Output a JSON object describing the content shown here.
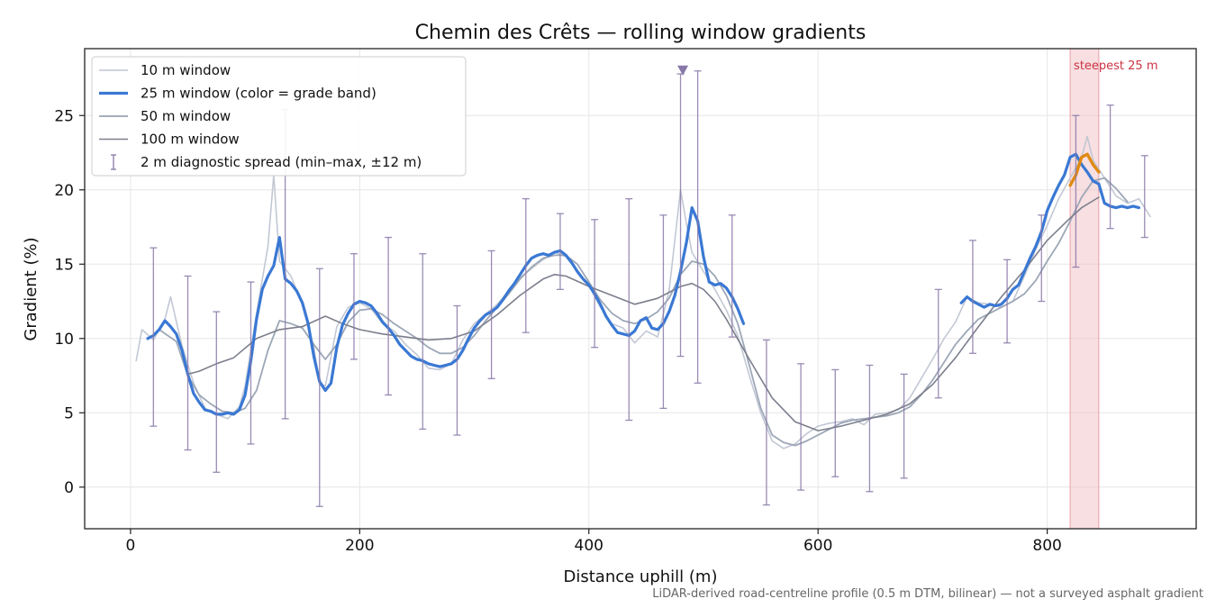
{
  "chart_data": {
    "type": "line",
    "title": "Chemin des Crêts — rolling window gradients",
    "xlabel": "Distance uphill (m)",
    "ylabel": "Gradient (%)",
    "xlim": [
      -40,
      930
    ],
    "ylim": [
      -2.8,
      29.5
    ],
    "xticks": [
      0,
      200,
      400,
      600,
      800
    ],
    "yticks": [
      0,
      5,
      10,
      15,
      20,
      25
    ],
    "grid": true,
    "legend_position": "top-left",
    "colors": {
      "w10": "#bfc5d2",
      "w25": "#3a78d4",
      "w25_steep": "#e08a12",
      "w50": "#98a2b3",
      "w100": "#7c7f8c",
      "errorbar": "#8878a8",
      "steep_band": "#f2c4c8",
      "steep_text": "#cc3344"
    },
    "series": [
      {
        "name": "10 m window",
        "key": "w10",
        "x": [
          5,
          10,
          20,
          30,
          35,
          45,
          55,
          65,
          75,
          85,
          95,
          100,
          110,
          120,
          125,
          130,
          140,
          150,
          160,
          165,
          170,
          180,
          190,
          200,
          210,
          220,
          230,
          240,
          250,
          260,
          270,
          280,
          290,
          300,
          320,
          340,
          360,
          370,
          380,
          400,
          410,
          420,
          430,
          440,
          450,
          460,
          470,
          480,
          485,
          490,
          500,
          510,
          520,
          530,
          540,
          550,
          560,
          570,
          580,
          590,
          600,
          610,
          620,
          630,
          640,
          650,
          660,
          670,
          680,
          690,
          700,
          710,
          720,
          730,
          740,
          750,
          760,
          770,
          780,
          790,
          800,
          810,
          820,
          830,
          835,
          840,
          850,
          860,
          870,
          880,
          890
        ],
        "y": [
          8.5,
          10.6,
          9.9,
          11.3,
          12.8,
          9.5,
          7.0,
          5.3,
          4.9,
          4.6,
          5.4,
          6.8,
          11.7,
          16.2,
          21.0,
          15.2,
          14.2,
          12.3,
          9.4,
          7.0,
          6.8,
          10.8,
          12.1,
          12.4,
          12.0,
          11.0,
          10.5,
          9.6,
          8.9,
          8.0,
          7.9,
          8.3,
          9.9,
          11.0,
          12.3,
          14.1,
          15.3,
          15.8,
          15.5,
          13.6,
          12.1,
          11.0,
          10.7,
          9.7,
          10.5,
          10.1,
          13.2,
          20.0,
          17.8,
          15.8,
          14.5,
          13.3,
          11.9,
          10.2,
          7.5,
          5.0,
          3.1,
          2.6,
          2.9,
          3.6,
          4.1,
          4.3,
          4.4,
          4.6,
          4.2,
          4.9,
          5.0,
          5.2,
          6.0,
          7.3,
          8.6,
          10.0,
          11.1,
          12.8,
          12.4,
          12.3,
          12.1,
          12.5,
          14.2,
          16.0,
          17.6,
          19.4,
          20.8,
          22.2,
          23.6,
          22.0,
          20.8,
          19.6,
          19.1,
          19.4,
          18.2
        ]
      },
      {
        "name": "25 m window (color = grade band)",
        "key": "w25",
        "x": [
          15,
          20,
          25,
          30,
          35,
          40,
          45,
          50,
          55,
          60,
          65,
          70,
          75,
          80,
          85,
          90,
          95,
          100,
          105,
          110,
          115,
          120,
          125,
          130,
          135,
          140,
          145,
          150,
          155,
          160,
          165,
          170,
          175,
          180,
          185,
          190,
          195,
          200,
          205,
          210,
          215,
          220,
          225,
          230,
          235,
          240,
          245,
          250,
          255,
          260,
          265,
          270,
          275,
          280,
          285,
          290,
          295,
          300,
          305,
          310,
          315,
          320,
          325,
          330,
          335,
          340,
          345,
          350,
          355,
          360,
          365,
          370,
          375,
          380,
          385,
          390,
          395,
          400,
          405,
          410,
          415,
          420,
          425,
          430,
          435,
          440,
          445,
          450,
          455,
          460,
          465,
          470,
          475,
          480,
          485,
          490,
          495,
          500,
          505,
          510,
          515,
          520,
          525,
          530,
          535,
          540,
          545,
          550,
          555,
          560,
          565,
          570,
          575,
          580,
          585,
          590,
          595,
          600,
          605,
          610,
          615,
          620,
          625,
          630,
          635,
          640,
          645,
          650,
          655,
          660,
          665,
          670,
          675,
          680,
          685,
          690,
          695,
          700,
          705,
          710,
          715,
          720,
          725,
          730,
          735,
          740,
          745,
          750,
          755,
          760,
          765,
          770,
          775,
          780,
          785,
          790,
          795,
          800,
          805,
          810,
          815,
          820,
          825,
          830,
          835,
          840,
          845,
          850,
          855,
          860,
          865,
          870,
          875,
          880
        ],
        "y": [
          10.0,
          10.2,
          10.6,
          11.2,
          10.8,
          10.3,
          9.2,
          7.6,
          6.3,
          5.7,
          5.2,
          5.1,
          4.9,
          4.9,
          5.0,
          4.9,
          5.2,
          6.2,
          8.5,
          11.3,
          13.3,
          14.2,
          14.9,
          16.8,
          14.0,
          13.7,
          13.2,
          12.4,
          11.0,
          8.8,
          7.1,
          6.5,
          7.0,
          9.4,
          10.9,
          11.7,
          12.3,
          12.5,
          12.4,
          12.2,
          11.7,
          11.1,
          10.7,
          10.2,
          9.6,
          9.2,
          8.8,
          8.6,
          8.5,
          8.3,
          8.2,
          8.1,
          8.2,
          8.3,
          8.6,
          9.2,
          10.0,
          10.7,
          11.2,
          11.6,
          11.8,
          12.1,
          12.6,
          13.2,
          13.7,
          14.3,
          14.9,
          15.4,
          15.6,
          15.7,
          15.6,
          15.8,
          15.9,
          15.6,
          15.1,
          14.5,
          14.0,
          13.6,
          13.0,
          12.3,
          11.5,
          10.9,
          10.4,
          10.3,
          10.2,
          10.5,
          11.2,
          11.4,
          10.7,
          10.6,
          11.0,
          11.8,
          12.9,
          14.5,
          16.4,
          18.8,
          17.9,
          15.5,
          13.8,
          13.6,
          13.7,
          13.4,
          12.8,
          12.0,
          11.0,
          null,
          null,
          null,
          null,
          null,
          null,
          null,
          null,
          null,
          null,
          null,
          null,
          null,
          null,
          null,
          null,
          null,
          null,
          null,
          null,
          null,
          null,
          null,
          null,
          null,
          null,
          null,
          null,
          null,
          null,
          null,
          null,
          null,
          null,
          null,
          null,
          null,
          12.4,
          12.8,
          12.5,
          12.3,
          12.1,
          12.3,
          12.2,
          12.3,
          12.7,
          13.3,
          13.6,
          14.5,
          15.4,
          16.2,
          17.2,
          18.6,
          19.5,
          20.3,
          21.0,
          22.2,
          22.4,
          21.7,
          21.2,
          20.6,
          20.4,
          19.1,
          18.9,
          18.8,
          18.9,
          18.8,
          18.9,
          18.8
        ]
      },
      {
        "name": "50 m window",
        "key": "w50",
        "x": [
          25,
          40,
          50,
          60,
          70,
          80,
          90,
          100,
          110,
          120,
          130,
          140,
          150,
          160,
          170,
          180,
          190,
          200,
          210,
          220,
          230,
          240,
          250,
          260,
          270,
          280,
          290,
          300,
          310,
          320,
          330,
          340,
          350,
          360,
          370,
          380,
          390,
          400,
          410,
          420,
          430,
          440,
          450,
          460,
          470,
          480,
          490,
          500,
          510,
          520,
          530,
          540,
          550,
          560,
          570,
          580,
          590,
          600,
          610,
          620,
          630,
          640,
          650,
          660,
          670,
          680,
          690,
          700,
          710,
          720,
          730,
          740,
          750,
          760,
          770,
          780,
          790,
          800,
          810,
          820,
          830,
          840,
          850,
          860,
          870
        ],
        "y": [
          10.6,
          9.8,
          7.5,
          6.2,
          5.6,
          5.1,
          5.0,
          5.3,
          6.5,
          9.2,
          11.2,
          11.0,
          10.7,
          9.6,
          8.6,
          9.6,
          11.1,
          11.9,
          12.0,
          11.6,
          11.0,
          10.5,
          10.0,
          9.4,
          9.0,
          9.0,
          9.4,
          10.2,
          11.2,
          12.1,
          13.0,
          14.0,
          14.8,
          15.4,
          15.6,
          15.6,
          15.0,
          13.8,
          12.6,
          11.7,
          11.2,
          11.0,
          11.3,
          11.8,
          12.7,
          14.3,
          15.2,
          15.0,
          14.2,
          12.9,
          11.0,
          8.2,
          5.3,
          3.5,
          3.0,
          2.8,
          3.1,
          3.5,
          3.9,
          4.3,
          4.5,
          4.6,
          4.7,
          4.8,
          5.0,
          5.4,
          6.2,
          7.2,
          8.4,
          9.6,
          10.5,
          11.3,
          11.7,
          12.1,
          12.5,
          13.0,
          13.9,
          15.2,
          16.4,
          17.9,
          19.5,
          20.6,
          20.8,
          20.1,
          19.2
        ]
      },
      {
        "name": "100 m window",
        "key": "w100",
        "x": [
          50,
          60,
          75,
          90,
          110,
          130,
          150,
          170,
          185,
          200,
          220,
          240,
          260,
          280,
          300,
          320,
          340,
          360,
          370,
          380,
          400,
          420,
          440,
          460,
          480,
          490,
          500,
          510,
          520,
          540,
          560,
          580,
          600,
          620,
          640,
          660,
          680,
          700,
          720,
          740,
          760,
          780,
          800,
          820,
          830,
          845
        ],
        "y": [
          7.6,
          7.8,
          8.3,
          8.7,
          10.0,
          10.6,
          10.8,
          11.5,
          11.0,
          10.6,
          10.3,
          10.1,
          9.9,
          10.0,
          10.5,
          11.6,
          12.9,
          14.0,
          14.3,
          14.2,
          13.5,
          12.9,
          12.3,
          12.7,
          13.5,
          13.7,
          13.3,
          12.5,
          11.3,
          8.6,
          6.0,
          4.4,
          3.8,
          4.1,
          4.5,
          4.9,
          5.6,
          6.9,
          8.7,
          10.8,
          12.8,
          14.6,
          16.6,
          18.1,
          18.8,
          19.5
        ]
      }
    ],
    "errorbars": {
      "name": "2 m diagnostic spread (min–max, ±12 m)",
      "items": [
        {
          "x": 20,
          "min": 4.1,
          "max": 16.1
        },
        {
          "x": 50,
          "min": 2.5,
          "max": 14.2
        },
        {
          "x": 75,
          "min": 1.0,
          "max": 11.8
        },
        {
          "x": 105,
          "min": 2.9,
          "max": 13.8
        },
        {
          "x": 135,
          "min": 4.6,
          "max": 25.4
        },
        {
          "x": 165,
          "min": -1.3,
          "max": 14.7
        },
        {
          "x": 195,
          "min": 8.6,
          "max": 15.7
        },
        {
          "x": 225,
          "min": 6.2,
          "max": 16.8
        },
        {
          "x": 255,
          "min": 3.9,
          "max": 15.7
        },
        {
          "x": 285,
          "min": 3.5,
          "max": 12.2
        },
        {
          "x": 315,
          "min": 7.3,
          "max": 15.9
        },
        {
          "x": 345,
          "min": 10.4,
          "max": 19.4
        },
        {
          "x": 375,
          "min": 13.3,
          "max": 18.4
        },
        {
          "x": 405,
          "min": 9.4,
          "max": 18.0
        },
        {
          "x": 435,
          "min": 4.5,
          "max": 19.4
        },
        {
          "x": 465,
          "min": 5.3,
          "max": 18.3
        },
        {
          "x": 480,
          "min": 8.8,
          "max": 27.8
        },
        {
          "x": 495,
          "min": 7.0,
          "max": 28.0
        },
        {
          "x": 525,
          "min": 10.1,
          "max": 18.3
        },
        {
          "x": 555,
          "min": -1.2,
          "max": 9.9
        },
        {
          "x": 585,
          "min": -0.2,
          "max": 8.3
        },
        {
          "x": 615,
          "min": 0.7,
          "max": 7.9
        },
        {
          "x": 645,
          "min": -0.3,
          "max": 8.2
        },
        {
          "x": 675,
          "min": 0.6,
          "max": 7.6
        },
        {
          "x": 705,
          "min": 6.0,
          "max": 13.3
        },
        {
          "x": 735,
          "min": 9.0,
          "max": 16.6
        },
        {
          "x": 765,
          "min": 9.7,
          "max": 15.3
        },
        {
          "x": 795,
          "min": 12.5,
          "max": 18.3
        },
        {
          "x": 825,
          "min": 14.8,
          "max": 25.0
        },
        {
          "x": 855,
          "min": 17.4,
          "max": 25.7
        },
        {
          "x": 885,
          "min": 16.8,
          "max": 22.3
        }
      ]
    },
    "steep_band": {
      "x0": 820,
      "x1": 845,
      "label": "steepest 25 m"
    },
    "steep_segment": {
      "x": [
        820,
        825,
        830,
        835,
        840,
        845
      ],
      "y": [
        20.3,
        21.0,
        22.2,
        22.4,
        21.7,
        21.2
      ]
    },
    "marker": {
      "x": 482,
      "y": 28.0
    }
  },
  "footnote": "LiDAR-derived road-centreline profile (0.5 m DTM, bilinear) — not a surveyed asphalt gradient"
}
